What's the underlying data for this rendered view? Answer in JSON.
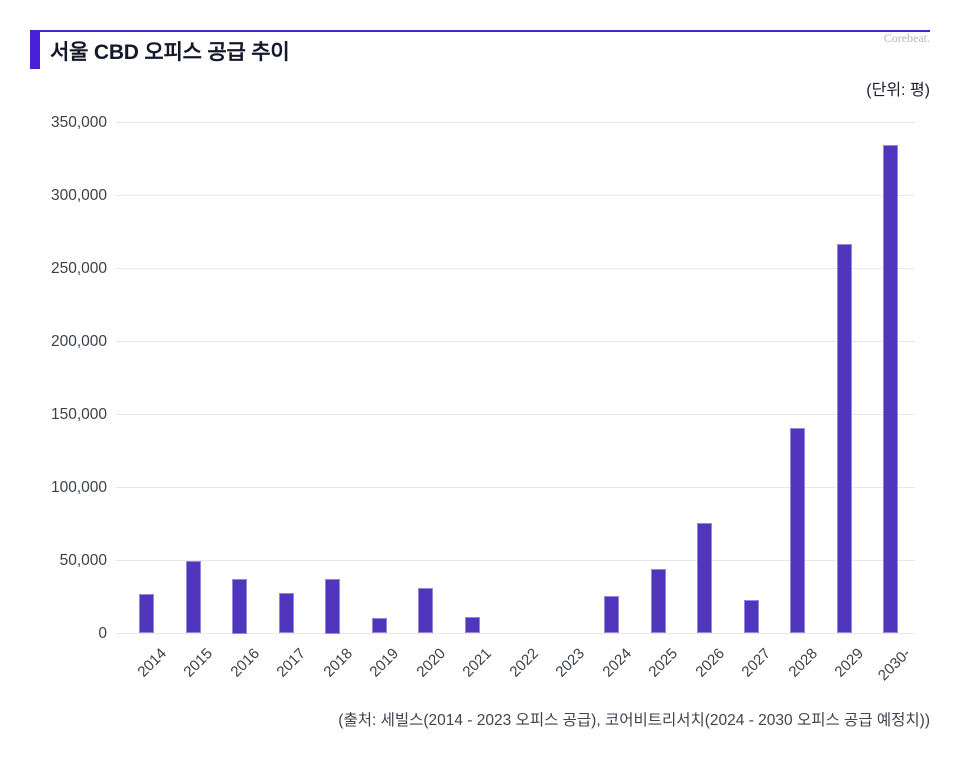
{
  "header": {
    "title": "서울 CBD 오피스 공급 추이",
    "watermark": "Corebeat."
  },
  "chart": {
    "unit_label": "(단위: 평)"
  },
  "footer": {
    "source": "(출처: 세빌스(2014 - 2023 오피스 공급), 코어비트리서치(2024 - 2030 오피스 공급 예정치))"
  },
  "colors": {
    "accent": "#4a1fd8",
    "bar_fill": "#5136bd",
    "bar_border": "#9488d9",
    "gridline": "#e7e7ea",
    "title_text": "#15172b",
    "axis_text": "#3b4149",
    "watermark_text": "#b3b6bf"
  },
  "chart_data": {
    "type": "bar",
    "title": "서울 CBD 오피스 공급 추이",
    "unit": "평",
    "categories": [
      "2014",
      "2015",
      "2016",
      "2017",
      "2018",
      "2019",
      "2020",
      "2021",
      "2022",
      "2023",
      "2024",
      "2025",
      "2026",
      "2027",
      "2028",
      "2029",
      "2030-"
    ],
    "values": [
      27000,
      49500,
      37500,
      28000,
      37500,
      10500,
      31000,
      11000,
      0,
      0,
      26000,
      44000,
      75500,
      23000,
      140500,
      267000,
      334500
    ],
    "ylim": [
      0,
      350000
    ],
    "ytick_step": 50000,
    "ytick_labels": [
      "0",
      "50,000",
      "100,000",
      "150,000",
      "200,000",
      "250,000",
      "300,000",
      "350,000"
    ],
    "grid": "horizontal",
    "legend": "none",
    "xlabel_rotation": -45
  }
}
